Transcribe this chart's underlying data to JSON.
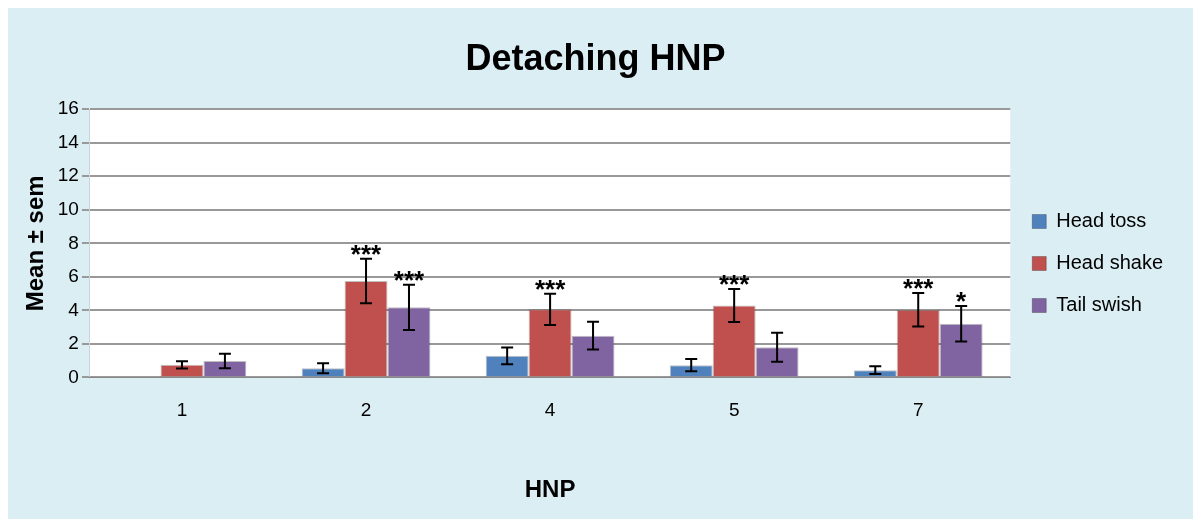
{
  "chart_data": {
    "type": "bar",
    "title": "Detaching HNP",
    "xlabel": "HNP",
    "ylabel": "Mean ± sem",
    "categories": [
      "1",
      "2",
      "4",
      "5",
      "7"
    ],
    "series": [
      {
        "name": "Head toss",
        "color": "#4f81bd",
        "values": [
          0,
          0.55,
          1.29,
          0.73,
          0.43
        ],
        "errors": [
          null,
          0.3,
          0.5,
          0.37,
          0.23
        ]
      },
      {
        "name": "Head shake",
        "color": "#c0504d",
        "values": [
          0.75,
          5.75,
          4.06,
          4.29,
          4.04
        ],
        "errors": [
          0.22,
          1.33,
          0.93,
          0.99,
          1.0
        ]
      },
      {
        "name": "Tail swish",
        "color": "#8064a2",
        "values": [
          0.98,
          4.18,
          2.49,
          1.8,
          3.2
        ],
        "errors": [
          0.43,
          1.35,
          0.83,
          0.86,
          1.06
        ]
      }
    ],
    "ylim": [
      0,
      16
    ],
    "yticks": [
      0,
      2,
      4,
      6,
      8,
      10,
      12,
      14,
      16
    ],
    "grid": "y",
    "legend": "right",
    "annotations": [
      {
        "text": "***",
        "x": "2",
        "y": 5.75
      },
      {
        "text": "***",
        "x": "2",
        "y": 4.18
      },
      {
        "text": "***",
        "x": "4",
        "y": 4.06
      },
      {
        "text": "***",
        "x": "5",
        "y": 4.29
      },
      {
        "text": "***",
        "x": "7",
        "y": 4.04
      },
      {
        "text": "*",
        "x": "7",
        "y": 3.2
      }
    ]
  }
}
